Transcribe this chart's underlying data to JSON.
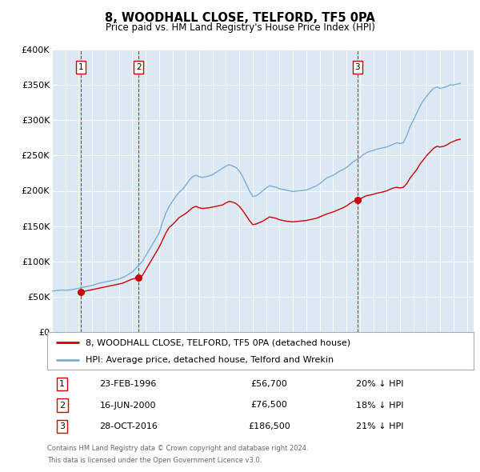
{
  "title": "8, WOODHALL CLOSE, TELFORD, TF5 0PA",
  "subtitle": "Price paid vs. HM Land Registry's House Price Index (HPI)",
  "red_label": "8, WOODHALL CLOSE, TELFORD, TF5 0PA (detached house)",
  "blue_label": "HPI: Average price, detached house, Telford and Wrekin",
  "footnote1": "Contains HM Land Registry data © Crown copyright and database right 2024.",
  "footnote2": "This data is licensed under the Open Government Licence v3.0.",
  "transactions": [
    {
      "num": 1,
      "date": "23-FEB-1996",
      "price": 56700,
      "x_year": 1996.14,
      "pct": "20%",
      "dir": "↓"
    },
    {
      "num": 2,
      "date": "16-JUN-2000",
      "price": 76500,
      "x_year": 2000.46,
      "pct": "18%",
      "dir": "↓"
    },
    {
      "num": 3,
      "date": "28-OCT-2016",
      "price": 186500,
      "x_year": 2016.83,
      "pct": "21%",
      "dir": "↓"
    }
  ],
  "ylim": [
    0,
    400000
  ],
  "xlim_start": 1994.0,
  "xlim_end": 2025.5,
  "yticks": [
    0,
    50000,
    100000,
    150000,
    200000,
    250000,
    300000,
    350000,
    400000
  ],
  "ytick_labels": [
    "£0",
    "£50K",
    "£100K",
    "£150K",
    "£200K",
    "£250K",
    "£300K",
    "£350K",
    "£400K"
  ],
  "background_color": "#dce9f5",
  "red_color": "#cc0000",
  "blue_color": "#7aadd4",
  "grid_color": "#ffffff",
  "hpi_data": [
    [
      1994.0,
      58000
    ],
    [
      1994.25,
      58500
    ],
    [
      1994.5,
      59000
    ],
    [
      1994.75,
      59500
    ],
    [
      1995.0,
      59000
    ],
    [
      1995.25,
      59500
    ],
    [
      1995.5,
      60000
    ],
    [
      1995.75,
      61000
    ],
    [
      1996.0,
      62000
    ],
    [
      1996.25,
      63000
    ],
    [
      1996.5,
      64000
    ],
    [
      1996.75,
      65000
    ],
    [
      1997.0,
      66000
    ],
    [
      1997.25,
      67500
    ],
    [
      1997.5,
      69000
    ],
    [
      1997.75,
      70000
    ],
    [
      1998.0,
      71000
    ],
    [
      1998.25,
      72000
    ],
    [
      1998.5,
      73000
    ],
    [
      1998.75,
      74000
    ],
    [
      1999.0,
      75000
    ],
    [
      1999.25,
      77000
    ],
    [
      1999.5,
      79000
    ],
    [
      1999.75,
      82000
    ],
    [
      2000.0,
      85000
    ],
    [
      2000.25,
      90000
    ],
    [
      2000.5,
      95000
    ],
    [
      2000.75,
      100000
    ],
    [
      2001.0,
      108000
    ],
    [
      2001.25,
      116000
    ],
    [
      2001.5,
      124000
    ],
    [
      2001.75,
      132000
    ],
    [
      2002.0,
      140000
    ],
    [
      2002.25,
      155000
    ],
    [
      2002.5,
      168000
    ],
    [
      2002.75,
      178000
    ],
    [
      2003.0,
      185000
    ],
    [
      2003.25,
      192000
    ],
    [
      2003.5,
      198000
    ],
    [
      2003.75,
      202000
    ],
    [
      2004.0,
      208000
    ],
    [
      2004.25,
      215000
    ],
    [
      2004.5,
      220000
    ],
    [
      2004.75,
      222000
    ],
    [
      2005.0,
      220000
    ],
    [
      2005.25,
      219000
    ],
    [
      2005.5,
      220000
    ],
    [
      2005.75,
      221000
    ],
    [
      2006.0,
      223000
    ],
    [
      2006.25,
      226000
    ],
    [
      2006.5,
      229000
    ],
    [
      2006.75,
      232000
    ],
    [
      2007.0,
      235000
    ],
    [
      2007.25,
      237000
    ],
    [
      2007.5,
      235000
    ],
    [
      2007.75,
      233000
    ],
    [
      2008.0,
      228000
    ],
    [
      2008.25,
      220000
    ],
    [
      2008.5,
      210000
    ],
    [
      2008.75,
      200000
    ],
    [
      2009.0,
      192000
    ],
    [
      2009.25,
      193000
    ],
    [
      2009.5,
      196000
    ],
    [
      2009.75,
      200000
    ],
    [
      2010.0,
      204000
    ],
    [
      2010.25,
      207000
    ],
    [
      2010.5,
      206000
    ],
    [
      2010.75,
      205000
    ],
    [
      2011.0,
      203000
    ],
    [
      2011.25,
      202000
    ],
    [
      2011.5,
      201000
    ],
    [
      2011.75,
      200000
    ],
    [
      2012.0,
      199000
    ],
    [
      2012.25,
      199500
    ],
    [
      2012.5,
      200000
    ],
    [
      2012.75,
      200500
    ],
    [
      2013.0,
      201000
    ],
    [
      2013.25,
      203000
    ],
    [
      2013.5,
      205000
    ],
    [
      2013.75,
      207000
    ],
    [
      2014.0,
      210000
    ],
    [
      2014.25,
      214000
    ],
    [
      2014.5,
      218000
    ],
    [
      2014.75,
      220000
    ],
    [
      2015.0,
      222000
    ],
    [
      2015.25,
      225000
    ],
    [
      2015.5,
      228000
    ],
    [
      2015.75,
      230000
    ],
    [
      2016.0,
      233000
    ],
    [
      2016.25,
      237000
    ],
    [
      2016.5,
      241000
    ],
    [
      2016.75,
      244000
    ],
    [
      2017.0,
      247000
    ],
    [
      2017.25,
      251000
    ],
    [
      2017.5,
      254000
    ],
    [
      2017.75,
      256000
    ],
    [
      2018.0,
      257000
    ],
    [
      2018.25,
      259000
    ],
    [
      2018.5,
      260000
    ],
    [
      2018.75,
      261000
    ],
    [
      2019.0,
      262000
    ],
    [
      2019.25,
      264000
    ],
    [
      2019.5,
      266000
    ],
    [
      2019.75,
      268000
    ],
    [
      2020.0,
      267000
    ],
    [
      2020.25,
      268000
    ],
    [
      2020.5,
      278000
    ],
    [
      2020.75,
      291000
    ],
    [
      2021.0,
      300000
    ],
    [
      2021.25,
      310000
    ],
    [
      2021.5,
      320000
    ],
    [
      2021.75,
      328000
    ],
    [
      2022.0,
      334000
    ],
    [
      2022.25,
      340000
    ],
    [
      2022.5,
      345000
    ],
    [
      2022.75,
      347000
    ],
    [
      2023.0,
      345000
    ],
    [
      2023.25,
      346000
    ],
    [
      2023.5,
      348000
    ],
    [
      2023.75,
      350000
    ],
    [
      2024.0,
      350000
    ],
    [
      2024.25,
      351000
    ],
    [
      2024.5,
      352000
    ]
  ],
  "red_data": [
    [
      1996.0,
      57500
    ],
    [
      1996.14,
      56700
    ],
    [
      1996.25,
      57200
    ],
    [
      1996.5,
      58000
    ],
    [
      1996.75,
      59000
    ],
    [
      1997.0,
      60000
    ],
    [
      1997.25,
      61000
    ],
    [
      1997.5,
      62000
    ],
    [
      1997.75,
      63000
    ],
    [
      1998.0,
      64000
    ],
    [
      1998.25,
      65000
    ],
    [
      1998.5,
      66000
    ],
    [
      1998.75,
      67000
    ],
    [
      1999.0,
      68000
    ],
    [
      1999.25,
      69000
    ],
    [
      1999.5,
      71000
    ],
    [
      1999.75,
      73000
    ],
    [
      2000.0,
      75000
    ],
    [
      2000.25,
      76000
    ],
    [
      2000.46,
      76500
    ],
    [
      2000.5,
      77000
    ],
    [
      2000.75,
      80000
    ],
    [
      2001.0,
      88000
    ],
    [
      2001.25,
      96000
    ],
    [
      2001.5,
      104000
    ],
    [
      2001.75,
      112000
    ],
    [
      2002.0,
      120000
    ],
    [
      2002.25,
      130000
    ],
    [
      2002.5,
      140000
    ],
    [
      2002.75,
      148000
    ],
    [
      2003.0,
      152000
    ],
    [
      2003.25,
      157000
    ],
    [
      2003.5,
      162000
    ],
    [
      2003.75,
      165000
    ],
    [
      2004.0,
      168000
    ],
    [
      2004.25,
      172000
    ],
    [
      2004.5,
      176000
    ],
    [
      2004.75,
      178000
    ],
    [
      2005.0,
      176000
    ],
    [
      2005.25,
      175000
    ],
    [
      2005.5,
      175500
    ],
    [
      2005.75,
      176000
    ],
    [
      2006.0,
      177000
    ],
    [
      2006.25,
      178000
    ],
    [
      2006.5,
      179000
    ],
    [
      2006.75,
      180000
    ],
    [
      2007.0,
      183000
    ],
    [
      2007.25,
      185000
    ],
    [
      2007.5,
      184000
    ],
    [
      2007.75,
      182000
    ],
    [
      2008.0,
      178000
    ],
    [
      2008.25,
      172000
    ],
    [
      2008.5,
      165000
    ],
    [
      2008.75,
      158000
    ],
    [
      2009.0,
      152000
    ],
    [
      2009.25,
      153000
    ],
    [
      2009.5,
      155000
    ],
    [
      2009.75,
      157000
    ],
    [
      2010.0,
      160000
    ],
    [
      2010.25,
      163000
    ],
    [
      2010.5,
      162000
    ],
    [
      2010.75,
      161000
    ],
    [
      2011.0,
      159000
    ],
    [
      2011.25,
      158000
    ],
    [
      2011.5,
      157000
    ],
    [
      2011.75,
      156500
    ],
    [
      2012.0,
      156000
    ],
    [
      2012.25,
      156500
    ],
    [
      2012.5,
      157000
    ],
    [
      2012.75,
      157500
    ],
    [
      2013.0,
      158000
    ],
    [
      2013.25,
      159000
    ],
    [
      2013.5,
      160000
    ],
    [
      2013.75,
      161000
    ],
    [
      2014.0,
      163000
    ],
    [
      2014.25,
      165000
    ],
    [
      2014.5,
      167000
    ],
    [
      2014.75,
      168500
    ],
    [
      2015.0,
      170000
    ],
    [
      2015.25,
      172000
    ],
    [
      2015.5,
      174000
    ],
    [
      2015.75,
      176000
    ],
    [
      2016.0,
      178500
    ],
    [
      2016.25,
      182000
    ],
    [
      2016.5,
      185000
    ],
    [
      2016.75,
      186000
    ],
    [
      2016.83,
      186500
    ],
    [
      2017.0,
      188000
    ],
    [
      2017.25,
      191000
    ],
    [
      2017.5,
      193000
    ],
    [
      2017.75,
      194000
    ],
    [
      2018.0,
      195000
    ],
    [
      2018.25,
      196500
    ],
    [
      2018.5,
      197500
    ],
    [
      2018.75,
      198500
    ],
    [
      2019.0,
      200000
    ],
    [
      2019.25,
      202000
    ],
    [
      2019.5,
      204000
    ],
    [
      2019.75,
      205000
    ],
    [
      2020.0,
      204000
    ],
    [
      2020.25,
      205000
    ],
    [
      2020.5,
      210000
    ],
    [
      2020.75,
      218000
    ],
    [
      2021.0,
      224000
    ],
    [
      2021.25,
      230000
    ],
    [
      2021.5,
      238000
    ],
    [
      2021.75,
      244000
    ],
    [
      2022.0,
      250000
    ],
    [
      2022.25,
      255000
    ],
    [
      2022.5,
      260000
    ],
    [
      2022.75,
      263000
    ],
    [
      2023.0,
      262000
    ],
    [
      2023.25,
      263000
    ],
    [
      2023.5,
      265000
    ],
    [
      2023.75,
      268000
    ],
    [
      2024.0,
      270000
    ],
    [
      2024.25,
      272000
    ],
    [
      2024.5,
      273000
    ]
  ]
}
